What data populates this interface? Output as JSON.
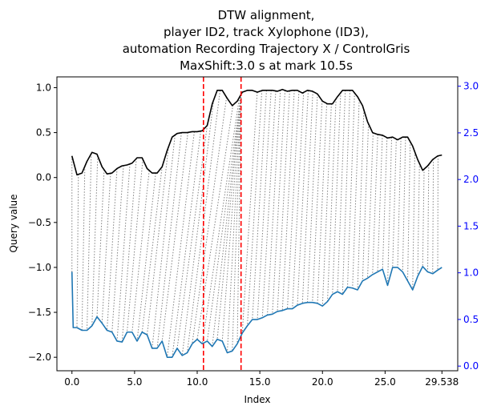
{
  "chart_data": {
    "type": "line",
    "title_lines": [
      "DTW alignment,",
      "player ID2, track Xylophone (ID3),",
      "automation Recording Trajectory X / ControlGris",
      "MaxShift:3.0 s at mark 10.5s"
    ],
    "xlabel": "Index",
    "ylabel": "Query value",
    "xlim": [
      -1.2,
      30.8
    ],
    "ylim": [
      -2.15,
      1.12
    ],
    "ylim_right": [
      -0.05,
      3.1
    ],
    "x_ticks": [
      0,
      5,
      10,
      15,
      20,
      25,
      29.538
    ],
    "x_tick_labels": [
      "0.0",
      "5.0",
      "10.0",
      "15.0",
      "20.0",
      "25.0",
      "29.538"
    ],
    "y_ticks": [
      1.0,
      0.5,
      0.0,
      -0.5,
      -1.0,
      -1.5,
      -2.0
    ],
    "y_tick_labels": [
      "1.0",
      "0.5",
      "0.0",
      "−0.5",
      "−1.0",
      "−1.5",
      "−2.0"
    ],
    "y_ticks_right": [
      3.0,
      2.5,
      2.0,
      1.5,
      1.0,
      0.5,
      0.0
    ],
    "y_tick_labels_right": [
      "3.0",
      "2.5",
      "2.0",
      "1.5",
      "1.0",
      "0.5",
      "0.0"
    ],
    "grid": false,
    "vlines": [
      10.5,
      13.5
    ],
    "colors": {
      "query": "#000000",
      "reference": "#1f77b4",
      "vline": "#ff0000",
      "alignment": "#808080",
      "right_axis": "#0000ff"
    },
    "series": [
      {
        "role": "query",
        "x": [
          0,
          0.4,
          0.8,
          1.2,
          1.6,
          2.0,
          2.4,
          2.8,
          3.2,
          3.6,
          4.0,
          4.4,
          4.8,
          5.2,
          5.6,
          6.0,
          6.4,
          6.8,
          7.2,
          7.6,
          8.0,
          8.4,
          8.8,
          9.2,
          9.6,
          10.0,
          10.4,
          10.8,
          11.2,
          11.6,
          12.0,
          12.4,
          12.8,
          13.2,
          13.6,
          14.0,
          14.4,
          14.8,
          15.2,
          15.6,
          16.0,
          16.4,
          16.8,
          17.2,
          17.6,
          18.0,
          18.4,
          18.8,
          19.2,
          19.6,
          20.0,
          20.4,
          20.8,
          21.2,
          21.6,
          22.0,
          22.4,
          22.8,
          23.2,
          23.6,
          24.0,
          24.4,
          24.8,
          25.2,
          25.6,
          26.0,
          26.4,
          26.8,
          27.2,
          27.6,
          28.0,
          28.4,
          28.8,
          29.2,
          29.538
        ],
        "y": [
          0.24,
          0.03,
          0.05,
          0.18,
          0.28,
          0.26,
          0.12,
          0.04,
          0.05,
          0.1,
          0.13,
          0.14,
          0.16,
          0.22,
          0.22,
          0.1,
          0.05,
          0.05,
          0.12,
          0.3,
          0.45,
          0.49,
          0.5,
          0.5,
          0.51,
          0.51,
          0.52,
          0.58,
          0.82,
          0.97,
          0.97,
          0.88,
          0.8,
          0.85,
          0.95,
          0.97,
          0.97,
          0.95,
          0.97,
          0.97,
          0.97,
          0.96,
          0.98,
          0.96,
          0.97,
          0.97,
          0.94,
          0.97,
          0.96,
          0.93,
          0.85,
          0.82,
          0.82,
          0.9,
          0.97,
          0.97,
          0.97,
          0.9,
          0.8,
          0.62,
          0.5,
          0.48,
          0.47,
          0.44,
          0.45,
          0.42,
          0.45,
          0.45,
          0.35,
          0.2,
          0.08,
          0.13,
          0.2,
          0.24,
          0.25
        ]
      },
      {
        "role": "reference",
        "x": [
          0,
          0.1,
          0.4,
          0.8,
          1.2,
          1.6,
          2.0,
          2.4,
          2.8,
          3.2,
          3.6,
          4.0,
          4.4,
          4.8,
          5.2,
          5.6,
          6.0,
          6.4,
          6.8,
          7.2,
          7.6,
          8.0,
          8.4,
          8.8,
          9.2,
          9.6,
          10.0,
          10.4,
          10.8,
          11.2,
          11.6,
          12.0,
          12.4,
          12.8,
          13.2,
          13.6,
          14.0,
          14.4,
          14.8,
          15.2,
          15.6,
          16.0,
          16.4,
          16.8,
          17.2,
          17.6,
          18.0,
          18.4,
          18.8,
          19.2,
          19.6,
          20.0,
          20.4,
          20.8,
          21.2,
          21.6,
          22.0,
          22.4,
          22.8,
          23.2,
          23.6,
          24.0,
          24.4,
          24.8,
          25.2,
          25.6,
          26.0,
          26.4,
          26.8,
          27.2,
          27.6,
          28.0,
          28.4,
          28.8,
          29.2,
          29.538
        ],
        "y": [
          -1.05,
          -1.67,
          -1.67,
          -1.7,
          -1.7,
          -1.65,
          -1.55,
          -1.62,
          -1.7,
          -1.72,
          -1.82,
          -1.83,
          -1.72,
          -1.72,
          -1.82,
          -1.72,
          -1.75,
          -1.9,
          -1.9,
          -1.82,
          -2.0,
          -2.0,
          -1.9,
          -1.98,
          -1.95,
          -1.85,
          -1.8,
          -1.85,
          -1.82,
          -1.88,
          -1.8,
          -1.82,
          -1.95,
          -1.93,
          -1.85,
          -1.73,
          -1.65,
          -1.58,
          -1.58,
          -1.56,
          -1.53,
          -1.52,
          -1.49,
          -1.48,
          -1.46,
          -1.46,
          -1.42,
          -1.4,
          -1.39,
          -1.39,
          -1.4,
          -1.43,
          -1.38,
          -1.3,
          -1.27,
          -1.3,
          -1.22,
          -1.23,
          -1.25,
          -1.15,
          -1.12,
          -1.08,
          -1.05,
          -1.02,
          -1.2,
          -1.0,
          -1.0,
          -1.05,
          -1.15,
          -1.25,
          -1.1,
          -0.99,
          -1.05,
          -1.07,
          -1.03,
          -1.0
        ]
      }
    ]
  }
}
